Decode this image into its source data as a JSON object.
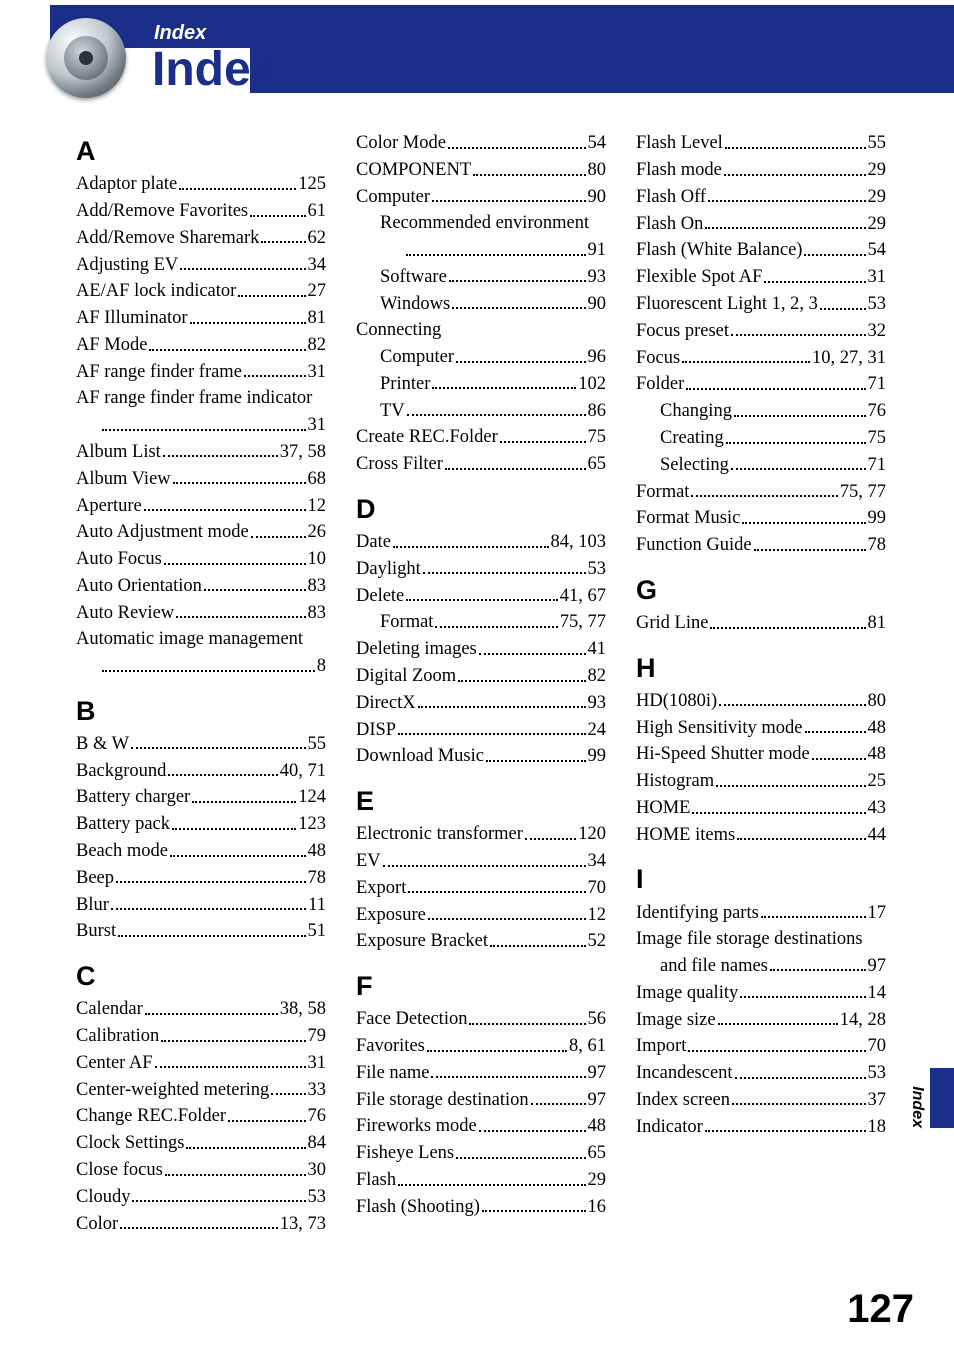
{
  "header": {
    "eyebrow": "Index",
    "title": "Index"
  },
  "side_label": "Index",
  "page_number": "127",
  "colors": {
    "brand": "#1a2e8a",
    "background": "#ffffff",
    "text": "#000000"
  },
  "index": {
    "A": [
      {
        "term": "Adaptor plate",
        "page": "125"
      },
      {
        "term": "Add/Remove Favorites",
        "page": "61"
      },
      {
        "term": "Add/Remove Sharemark",
        "page": "62"
      },
      {
        "term": "Adjusting EV",
        "page": "34"
      },
      {
        "term": "AE/AF lock indicator",
        "page": "27"
      },
      {
        "term": "AF Illuminator",
        "page": "81"
      },
      {
        "term": "AF Mode",
        "page": "82"
      },
      {
        "term": "AF range finder frame",
        "page": "31"
      },
      {
        "term": "AF range finder frame indicator",
        "page": "31",
        "wrap": true
      },
      {
        "term": "Album List",
        "page": "37, 58"
      },
      {
        "term": "Album View",
        "page": "68"
      },
      {
        "term": "Aperture",
        "page": "12"
      },
      {
        "term": "Auto Adjustment mode",
        "page": "26"
      },
      {
        "term": "Auto Focus",
        "page": "10"
      },
      {
        "term": "Auto Orientation",
        "page": "83"
      },
      {
        "term": "Auto Review",
        "page": "83"
      },
      {
        "term": "Automatic image management",
        "page": "8",
        "wrap": true
      }
    ],
    "B": [
      {
        "term": "B & W",
        "page": "55"
      },
      {
        "term": "Background",
        "page": "40, 71"
      },
      {
        "term": "Battery charger",
        "page": "124"
      },
      {
        "term": "Battery pack",
        "page": "123"
      },
      {
        "term": "Beach mode",
        "page": "48"
      },
      {
        "term": "Beep",
        "page": "78"
      },
      {
        "term": "Blur",
        "page": "11"
      },
      {
        "term": "Burst",
        "page": "51"
      }
    ],
    "C": [
      {
        "term": "Calendar",
        "page": "38, 58"
      },
      {
        "term": "Calibration",
        "page": "79"
      },
      {
        "term": "Center AF",
        "page": "31"
      },
      {
        "term": "Center-weighted metering",
        "page": "33"
      },
      {
        "term": "Change REC.Folder",
        "page": "76"
      },
      {
        "term": "Clock Settings",
        "page": "84"
      },
      {
        "term": "Close focus",
        "page": "30"
      },
      {
        "term": "Cloudy",
        "page": "53"
      },
      {
        "term": "Color",
        "page": "13, 73"
      },
      {
        "term": "Color Mode",
        "page": "54"
      },
      {
        "term": "COMPONENT",
        "page": "80"
      },
      {
        "term": "Computer",
        "page": "90",
        "sub": [
          {
            "term": "Recommended environment",
            "page": "91",
            "wrap": true
          },
          {
            "term": "Software",
            "page": "93"
          },
          {
            "term": "Windows",
            "page": "90"
          }
        ]
      },
      {
        "term": "Connecting",
        "no_page": true,
        "sub": [
          {
            "term": "Computer",
            "page": "96"
          },
          {
            "term": "Printer",
            "page": "102"
          },
          {
            "term": "TV",
            "page": "86"
          }
        ]
      },
      {
        "term": "Create REC.Folder",
        "page": "75"
      },
      {
        "term": "Cross Filter",
        "page": "65"
      }
    ],
    "D": [
      {
        "term": "Date",
        "page": "84, 103"
      },
      {
        "term": "Daylight",
        "page": "53"
      },
      {
        "term": "Delete",
        "page": "41, 67",
        "sub": [
          {
            "term": "Format",
            "page": "75, 77"
          }
        ]
      },
      {
        "term": "Deleting images",
        "page": "41"
      },
      {
        "term": "Digital Zoom",
        "page": "82"
      },
      {
        "term": "DirectX",
        "page": "93"
      },
      {
        "term": "DISP",
        "page": "24"
      },
      {
        "term": "Download Music",
        "page": "99"
      }
    ],
    "E": [
      {
        "term": "Electronic transformer",
        "page": "120"
      },
      {
        "term": "EV",
        "page": "34"
      },
      {
        "term": "Export",
        "page": "70"
      },
      {
        "term": "Exposure",
        "page": "12"
      },
      {
        "term": "Exposure Bracket",
        "page": "52"
      }
    ],
    "F": [
      {
        "term": "Face Detection",
        "page": "56"
      },
      {
        "term": "Favorites",
        "page": "8, 61"
      },
      {
        "term": "File name",
        "page": "97"
      },
      {
        "term": "File storage destination",
        "page": "97"
      },
      {
        "term": "Fireworks mode",
        "page": "48"
      },
      {
        "term": "Fisheye Lens",
        "page": "65"
      },
      {
        "term": "Flash",
        "page": "29"
      },
      {
        "term": "Flash (Shooting)",
        "page": "16"
      },
      {
        "term": "Flash Level",
        "page": "55"
      },
      {
        "term": "Flash mode",
        "page": "29"
      },
      {
        "term": "Flash Off",
        "page": "29"
      },
      {
        "term": "Flash On",
        "page": "29"
      },
      {
        "term": "Flash (White Balance)",
        "page": "54"
      },
      {
        "term": "Flexible Spot AF",
        "page": "31"
      },
      {
        "term": "Fluorescent Light 1, 2, 3",
        "page": "53"
      },
      {
        "term": "Focus preset",
        "page": "32"
      },
      {
        "term": "Focus",
        "page": "10, 27, 31"
      },
      {
        "term": "Folder",
        "page": "71",
        "sub": [
          {
            "term": "Changing",
            "page": "76"
          },
          {
            "term": "Creating",
            "page": "75"
          },
          {
            "term": "Selecting",
            "page": "71"
          }
        ]
      },
      {
        "term": "Format",
        "page": "75, 77"
      },
      {
        "term": "Format Music",
        "page": "99"
      },
      {
        "term": "Function Guide",
        "page": "78"
      }
    ],
    "G": [
      {
        "term": "Grid Line",
        "page": "81"
      }
    ],
    "H": [
      {
        "term": "HD(1080i)",
        "page": "80"
      },
      {
        "term": "High Sensitivity mode",
        "page": "48"
      },
      {
        "term": "Hi-Speed Shutter mode",
        "page": "48"
      },
      {
        "term": "Histogram",
        "page": "25"
      },
      {
        "term": "HOME",
        "page": "43"
      },
      {
        "term": "HOME items",
        "page": "44"
      }
    ],
    "I": [
      {
        "term": "Identifying parts",
        "page": "17"
      },
      {
        "term": "Image file storage destinations and file names",
        "page": "97",
        "wrap": true,
        "wrap_at": "destinations"
      },
      {
        "term": "Image quality",
        "page": "14"
      },
      {
        "term": "Image size",
        "page": "14, 28"
      },
      {
        "term": "Import",
        "page": "70"
      },
      {
        "term": "Incandescent",
        "page": "53"
      },
      {
        "term": "Index screen",
        "page": "37"
      },
      {
        "term": "Indicator",
        "page": "18"
      }
    ]
  }
}
